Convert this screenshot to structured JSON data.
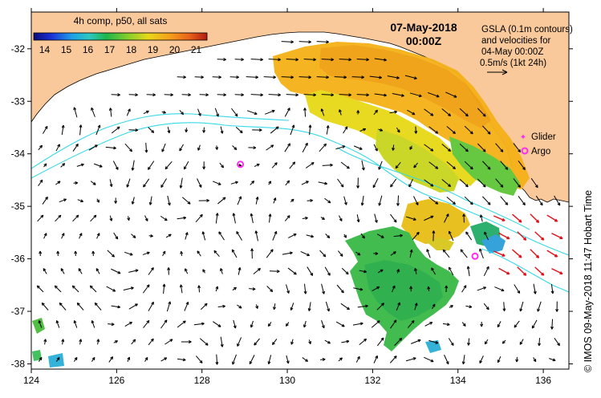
{
  "colorbar": {
    "title": "4h comp, p50, all sats",
    "ticks": [
      "14",
      "15",
      "16",
      "17",
      "18",
      "19",
      "20",
      "21"
    ],
    "min": 13.5,
    "max": 21.5
  },
  "header": {
    "date": "07-May-2018",
    "time": "00:00Z"
  },
  "legend": {
    "line1": "GSLA (0.1m contours)",
    "line2": "and velocities for",
    "line3": "04-May 00:00Z",
    "line4": "0.5m/s (1kt 24h)",
    "glider_label": "Glider",
    "argo_label": "Argo"
  },
  "axes": {
    "x_ticks": [
      "124",
      "126",
      "128",
      "130",
      "132",
      "134",
      "136"
    ],
    "x_values": [
      124,
      126,
      128,
      130,
      132,
      134,
      136
    ],
    "y_ticks": [
      "-32",
      "-33",
      "-34",
      "-35",
      "-36",
      "-37",
      "-38"
    ],
    "y_values": [
      -32,
      -33,
      -34,
      -35,
      -36,
      -37,
      -38
    ],
    "xlim": [
      124,
      136.6
    ],
    "ylim": [
      -38.1,
      -31.3
    ]
  },
  "argo_floats": [
    {
      "lon": 128.9,
      "lat": -34.2
    },
    {
      "lon": 134.4,
      "lat": -35.95
    }
  ],
  "credit": "© IMOS 09-May-2018 11:47 Hobart Time",
  "colors": {
    "land": "#f9c99b",
    "ocean": "#ffffff",
    "contour": "#36d9e6",
    "arrow": "#000000",
    "fast_arrow": "#e0101a",
    "argo": "#ff2cf0"
  }
}
